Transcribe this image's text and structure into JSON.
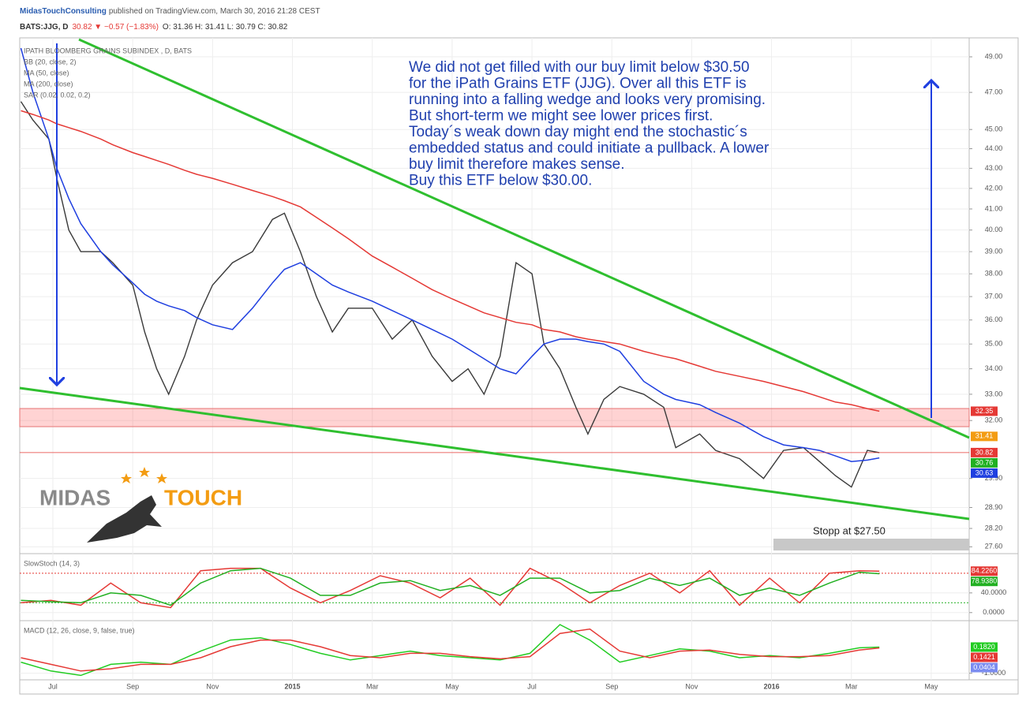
{
  "header": {
    "author": "MidasTouchConsulting",
    "published": "published on TradingView.com, March 30, 2016 21:28 CEST",
    "symbol": "BATS:JJG, D",
    "change": "30.82 ▼ −0.57 (−1.83%)",
    "ohlc": "O: 31.36 H: 31.41 L: 30.79 C: 30.82"
  },
  "annotation": [
    "We did not get filled with our buy limit below $30.50",
    "for the iPath Grains ETF (JJG). Over all this ETF is",
    "running into a falling wedge and looks very promising.",
    "But short-term we might see lower prices first.",
    "Today´s weak down day might end the stochastic´s",
    "embedded status and could initiate a pullback. A lower",
    "buy limit therefore makes sense.",
    "Buy this ETF below $30.00."
  ],
  "stop_note": "Stopp at $27.50",
  "logo": {
    "left": "MIDAS",
    "right": "TOUCH"
  },
  "chart_data": [
    {
      "type": "line",
      "title": "IPATH BLOOMBERG GRAINS SUBINDEX , D, BATS",
      "log_scale": true,
      "grid": true,
      "indicators": [
        "BB (20, close, 2)",
        "SAR (0.02, 0.02, 0.2)"
      ],
      "xlim": [
        -0.83,
        22.95
      ],
      "ylim": [
        27.43,
        50.1
      ],
      "xticks": [
        {
          "value": 0,
          "label": "Jul"
        },
        {
          "value": 2,
          "label": "Sep"
        },
        {
          "value": 4,
          "label": "Nov"
        },
        {
          "value": 6,
          "label": "2015"
        },
        {
          "value": 8,
          "label": "Mar"
        },
        {
          "value": 10,
          "label": "May"
        },
        {
          "value": 12,
          "label": "Jul"
        },
        {
          "value": 14,
          "label": "Sep"
        },
        {
          "value": 16,
          "label": "Nov"
        },
        {
          "value": 18,
          "label": "2016"
        },
        {
          "value": 20,
          "label": "Mar"
        },
        {
          "value": 22,
          "label": "May"
        }
      ],
      "yticks": [
        {
          "value": 49,
          "label": "49.00"
        },
        {
          "value": 47,
          "label": "47.00"
        },
        {
          "value": 45,
          "label": "45.00"
        },
        {
          "value": 44,
          "label": "44.00"
        },
        {
          "value": 43,
          "label": "43.00"
        },
        {
          "value": 42,
          "label": "42.00"
        },
        {
          "value": 41,
          "label": "41.00"
        },
        {
          "value": 40,
          "label": "40.00"
        },
        {
          "value": 39,
          "label": "39.00"
        },
        {
          "value": 38,
          "label": "38.00"
        },
        {
          "value": 37,
          "label": "37.00"
        },
        {
          "value": 36,
          "label": "36.00"
        },
        {
          "value": 35,
          "label": "35.00"
        },
        {
          "value": 34,
          "label": "34.00"
        },
        {
          "value": 33,
          "label": "33.00"
        },
        {
          "value": 32,
          "label": "32.00"
        },
        {
          "value": 29.9,
          "label": "29.90"
        },
        {
          "value": 28.9,
          "label": "28.90"
        },
        {
          "value": 28.2,
          "label": "28.20"
        },
        {
          "value": 27.6,
          "label": "27.60"
        }
      ],
      "x": [
        -0.8,
        -0.5,
        -0.1,
        0.1,
        0.4,
        0.7,
        1.2,
        1.5,
        2.0,
        2.3,
        2.6,
        2.9,
        3.3,
        3.6,
        4.0,
        4.5,
        5.0,
        5.5,
        5.8,
        6.2,
        6.6,
        7.0,
        7.4,
        8.0,
        8.5,
        9.0,
        9.5,
        10.0,
        10.4,
        10.8,
        11.2,
        11.6,
        12.0,
        12.3,
        12.7,
        13.1,
        13.4,
        13.8,
        14.2,
        14.8,
        15.3,
        15.6,
        16.2,
        16.6,
        17.2,
        17.8,
        18.3,
        18.8,
        19.2,
        19.6,
        20.0,
        20.4,
        20.7
      ],
      "values": [
        46.5,
        45.5,
        44.5,
        42.5,
        40,
        39,
        39,
        38.5,
        37.5,
        35.5,
        34,
        33,
        34.5,
        36,
        37.5,
        38.5,
        39,
        40.5,
        40.8,
        39,
        37,
        35.5,
        36.5,
        36.5,
        35.2,
        36,
        34.5,
        33.5,
        34,
        33,
        34.5,
        38.5,
        38,
        35,
        34,
        32.5,
        31.5,
        32.8,
        33.3,
        33,
        32.5,
        31,
        31.5,
        30.9,
        30.6,
        29.9,
        30.9,
        31,
        30.5,
        30,
        29.6,
        30.9,
        30.82
      ],
      "color": "#3a3a3a",
      "series": [
        {
          "name": "MA (50, close)",
          "color": "#1f3fe0",
          "values": [
            49.5,
            47,
            44.5,
            43,
            41.5,
            40.3,
            39,
            38.4,
            37.6,
            37.1,
            36.8,
            36.6,
            36.4,
            36.1,
            35.8,
            35.6,
            36.5,
            37.6,
            38.2,
            38.5,
            38,
            37.5,
            37.2,
            36.8,
            36.4,
            36,
            35.6,
            35.2,
            34.8,
            34.4,
            34,
            33.8,
            34.5,
            35,
            35.2,
            35.2,
            35.1,
            35,
            34.7,
            33.5,
            33,
            32.8,
            32.6,
            32.3,
            31.9,
            31.4,
            31.1,
            31,
            30.9,
            30.7,
            30.5,
            30.55,
            30.63
          ]
        },
        {
          "name": "MA (200, close)",
          "color": "#e53935",
          "values": [
            46,
            45.8,
            45.5,
            45.3,
            45.1,
            44.9,
            44.5,
            44.2,
            43.8,
            43.6,
            43.4,
            43.2,
            42.9,
            42.7,
            42.5,
            42.2,
            41.9,
            41.6,
            41.4,
            41.1,
            40.6,
            40.1,
            39.6,
            38.8,
            38.3,
            37.8,
            37.3,
            36.9,
            36.6,
            36.3,
            36.1,
            35.9,
            35.8,
            35.6,
            35.5,
            35.3,
            35.2,
            35.1,
            35.0,
            34.7,
            34.5,
            34.4,
            34.1,
            33.9,
            33.7,
            33.5,
            33.3,
            33.1,
            32.9,
            32.7,
            32.6,
            32.45,
            32.35
          ]
        }
      ],
      "price_labels": [
        {
          "value": 32.35,
          "color": "#e53935"
        },
        {
          "value": 31.41,
          "color": "#f39c12"
        },
        {
          "value": 30.82,
          "color": "#e53935"
        },
        {
          "value": 30.76,
          "color": "#22b022"
        },
        {
          "value": 30.63,
          "color": "#1f3fe0"
        }
      ]
    },
    {
      "type": "line",
      "title": "SlowStoch (14, 3)",
      "xlim": [
        -0.83,
        22.95
      ],
      "ylim": [
        -10,
        115
      ],
      "yticks": [
        {
          "value": 40,
          "label": "40.0000"
        },
        {
          "value": 0,
          "label": "0.0000"
        }
      ],
      "levels": [
        80,
        20
      ],
      "level_colors": [
        "#e53935",
        "#22b022"
      ],
      "x": [
        -0.8,
        -0.05,
        0.7,
        1.45,
        2.2,
        2.95,
        3.7,
        4.45,
        5.2,
        5.95,
        6.7,
        7.45,
        8.2,
        8.95,
        9.7,
        10.45,
        11.2,
        11.95,
        12.7,
        13.45,
        14.2,
        14.95,
        15.7,
        16.45,
        17.2,
        17.95,
        18.7,
        19.45,
        20.2,
        20.7
      ],
      "series": [
        {
          "color": "#e53935",
          "values": [
            20,
            25,
            15,
            60,
            20,
            10,
            85,
            90,
            90,
            50,
            20,
            45,
            75,
            60,
            30,
            70,
            15,
            90,
            60,
            20,
            55,
            80,
            40,
            85,
            15,
            70,
            20,
            80,
            85,
            84.226
          ]
        },
        {
          "color": "#22b022",
          "values": [
            25,
            22,
            20,
            40,
            35,
            15,
            60,
            85,
            90,
            70,
            35,
            35,
            60,
            65,
            45,
            55,
            35,
            70,
            70,
            40,
            45,
            70,
            55,
            70,
            35,
            50,
            35,
            60,
            82,
            78.938
          ]
        }
      ],
      "price_labels": [
        {
          "value": 84.226,
          "label": "84.2260",
          "color": "#e53935"
        },
        {
          "value": 78.938,
          "label": "78.9380",
          "color": "#22b022"
        }
      ]
    },
    {
      "type": "line",
      "title": "MACD (12, 26, close, 9, false, true)",
      "xlim": [
        -0.83,
        22.95
      ],
      "ylim": [
        -1.3,
        1.27
      ],
      "yticks": [
        {
          "value": -1,
          "label": "-1.0000"
        }
      ],
      "x": [
        -0.8,
        -0.05,
        0.7,
        1.45,
        2.2,
        2.95,
        3.7,
        4.45,
        5.2,
        5.95,
        6.7,
        7.45,
        8.2,
        8.95,
        9.7,
        10.45,
        11.2,
        11.95,
        12.7,
        13.45,
        14.2,
        14.95,
        15.7,
        16.45,
        17.2,
        17.95,
        18.7,
        19.45,
        20.2,
        20.7
      ],
      "series": [
        {
          "color": "#22cc22",
          "values": [
            -0.5,
            -0.9,
            -1.1,
            -0.6,
            -0.5,
            -0.6,
            0.0,
            0.5,
            0.6,
            0.3,
            -0.1,
            -0.4,
            -0.2,
            0.0,
            -0.2,
            -0.3,
            -0.4,
            -0.1,
            1.2,
            0.5,
            -0.5,
            -0.2,
            0.1,
            0.0,
            -0.3,
            -0.2,
            -0.3,
            -0.1,
            0.15,
            0.182
          ]
        },
        {
          "color": "#e53935",
          "values": [
            -0.3,
            -0.6,
            -0.9,
            -0.8,
            -0.6,
            -0.6,
            -0.3,
            0.2,
            0.5,
            0.5,
            0.2,
            -0.2,
            -0.3,
            -0.1,
            -0.1,
            -0.25,
            -0.35,
            -0.25,
            0.8,
            1.0,
            0.0,
            -0.3,
            0.0,
            0.05,
            -0.15,
            -0.25,
            -0.25,
            -0.2,
            0.05,
            0.1421
          ]
        }
      ],
      "price_labels": [
        {
          "value": 0.182,
          "label": "0.1820",
          "color": "#22cc22"
        },
        {
          "value": 0.1421,
          "label": "0.1421",
          "color": "#e53935"
        },
        {
          "value": 0.0404,
          "label": "0.0404",
          "color": "#7b8cf0"
        }
      ]
    }
  ]
}
